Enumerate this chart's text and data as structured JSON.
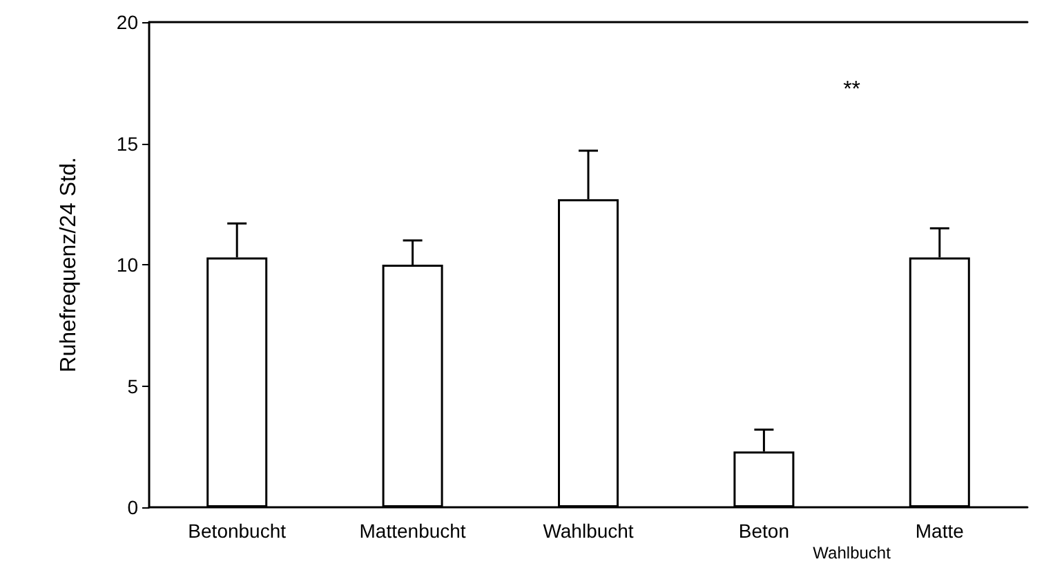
{
  "chart_data": {
    "type": "bar",
    "ylabel": "Ruhefrequenz/24 Std.",
    "categories": [
      "Betonbucht",
      "Mattenbucht",
      "Wahlbucht",
      "Beton",
      "Matte"
    ],
    "values": [
      10.3,
      10.0,
      12.7,
      2.3,
      10.3
    ],
    "errors": [
      [
        10.3,
        11.7
      ],
      [
        10.0,
        11.0
      ],
      [
        12.7,
        14.7
      ],
      [
        2.3,
        3.2
      ],
      [
        10.3,
        11.5
      ]
    ],
    "color": "#ffffff",
    "ylim": [
      0,
      20
    ],
    "yticks": [
      0,
      5,
      10,
      15,
      20
    ],
    "grid": false,
    "annotations": [
      "**",
      "Wahlbucht"
    ]
  }
}
